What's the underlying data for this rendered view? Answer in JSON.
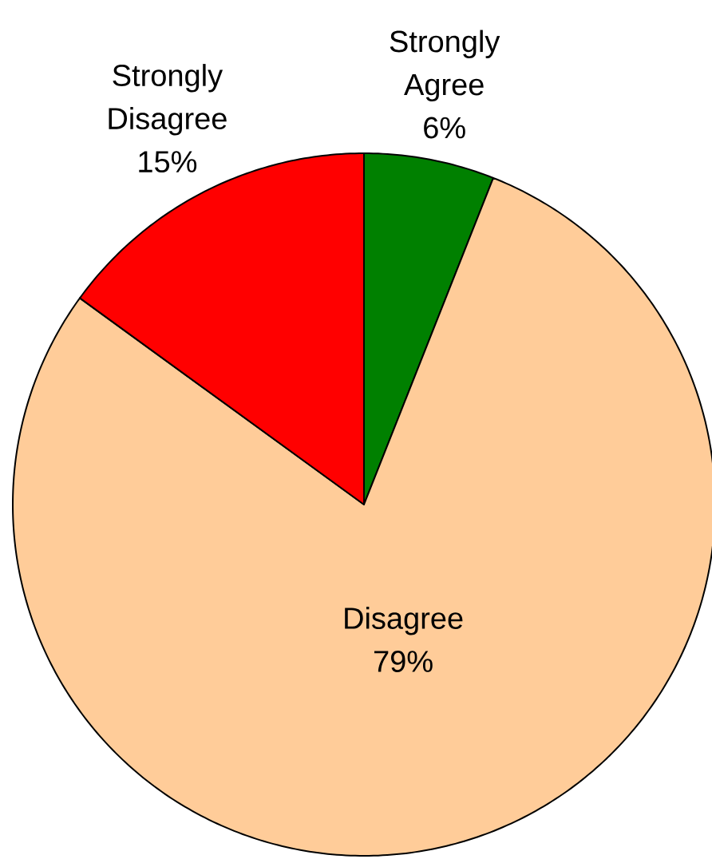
{
  "chart_data": {
    "type": "pie",
    "categories": [
      "Strongly Agree",
      "Disagree",
      "Strongly Disagree"
    ],
    "values": [
      6,
      79,
      15
    ],
    "colors": [
      "#008000",
      "#ffcc99",
      "#ff0000"
    ],
    "value_labels": [
      "6%",
      "79%",
      "15%"
    ]
  }
}
